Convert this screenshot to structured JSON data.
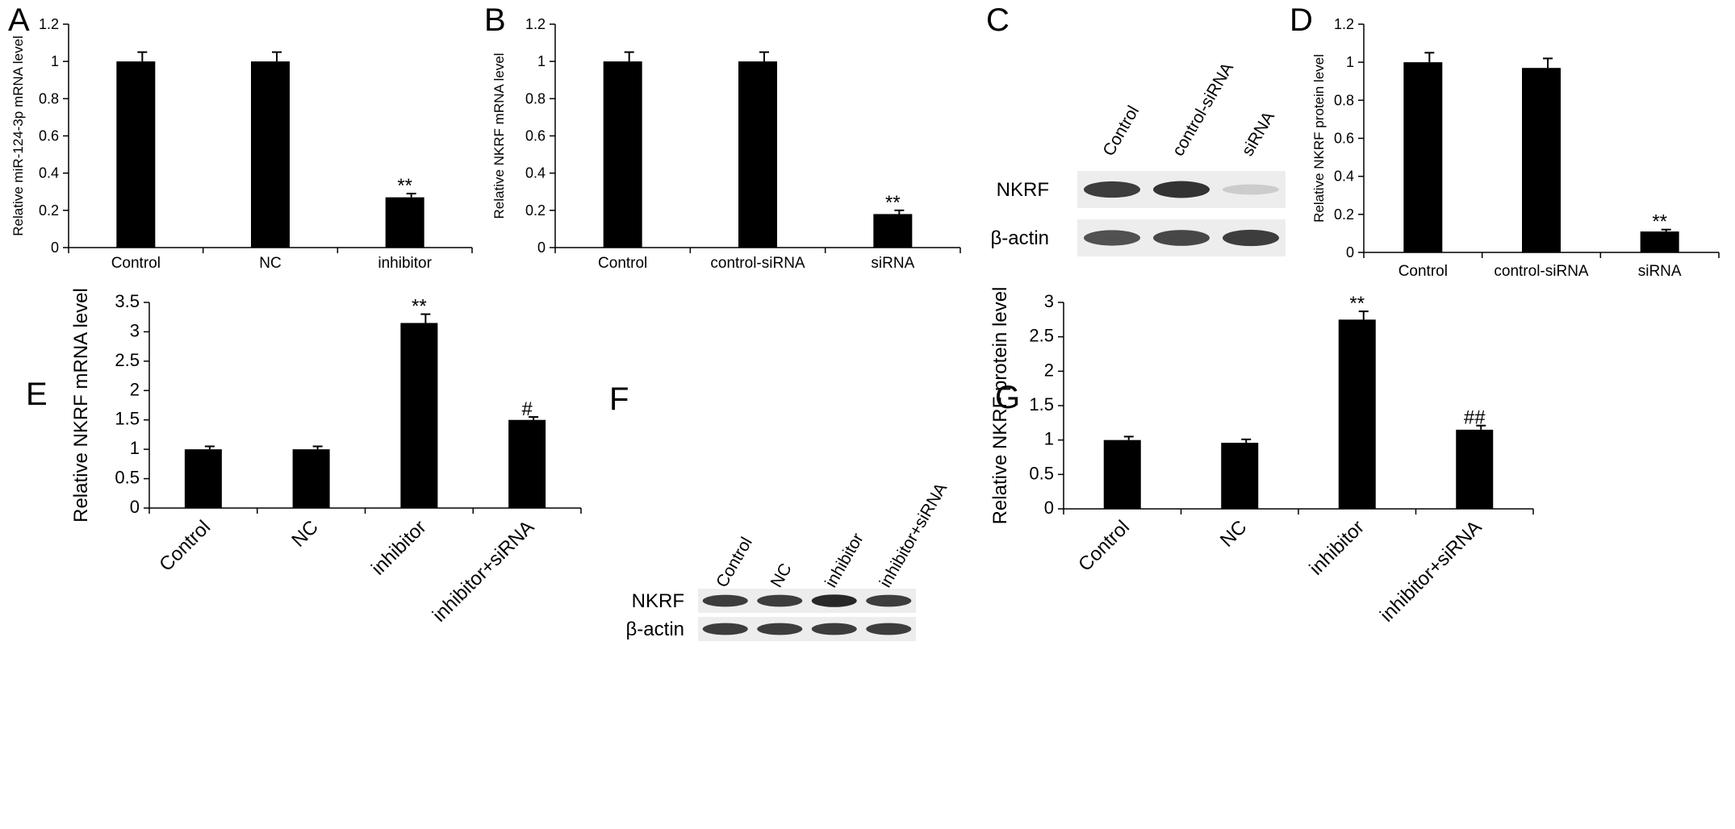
{
  "panels": {
    "A": {
      "letter": "A"
    },
    "B": {
      "letter": "B"
    },
    "C": {
      "letter": "C"
    },
    "D": {
      "letter": "D"
    },
    "E": {
      "letter": "E"
    },
    "F": {
      "letter": "F"
    },
    "G": {
      "letter": "G"
    }
  },
  "chart_data": [
    {
      "panel": "A",
      "type": "bar",
      "categories": [
        "Control",
        "NC",
        "inhibitor"
      ],
      "values": [
        1.0,
        1.0,
        0.27
      ],
      "errors": [
        0.05,
        0.05,
        0.02
      ],
      "annotations": [
        "",
        "",
        "**"
      ],
      "ylabel": "Relative miR-124-3p mRNA level",
      "xlabel": "",
      "ylim": [
        0,
        1.2
      ],
      "yticks": [
        "0",
        "0.2",
        "0.4",
        "0.6",
        "0.8",
        "1",
        "1.2"
      ],
      "bar_color": "#000000"
    },
    {
      "panel": "B",
      "type": "bar",
      "categories": [
        "Control",
        "control-siRNA",
        "siRNA"
      ],
      "values": [
        1.0,
        1.0,
        0.18
      ],
      "errors": [
        0.05,
        0.05,
        0.02
      ],
      "annotations": [
        "",
        "",
        "**"
      ],
      "ylabel": "Relative NKRF mRNA level",
      "xlabel": "",
      "ylim": [
        0,
        1.2
      ],
      "yticks": [
        "0",
        "0.2",
        "0.4",
        "0.6",
        "0.8",
        "1",
        "1.2"
      ],
      "bar_color": "#000000"
    },
    {
      "panel": "D",
      "type": "bar",
      "categories": [
        "Control",
        "control-siRNA",
        "siRNA"
      ],
      "values": [
        1.0,
        0.97,
        0.11
      ],
      "errors": [
        0.05,
        0.05,
        0.01
      ],
      "annotations": [
        "",
        "",
        "**"
      ],
      "ylabel": "Relative NKRF protein level",
      "xlabel": "",
      "ylim": [
        0,
        1.2
      ],
      "yticks": [
        "0",
        "0.2",
        "0.4",
        "0.6",
        "0.8",
        "1",
        "1.2"
      ],
      "bar_color": "#000000"
    },
    {
      "panel": "E",
      "type": "bar",
      "categories": [
        "Control",
        "NC",
        "inhibitor",
        "inhibitor+siRNA"
      ],
      "values": [
        1.0,
        1.0,
        3.15,
        1.5
      ],
      "errors": [
        0.05,
        0.05,
        0.15,
        0.05
      ],
      "annotations": [
        "",
        "",
        "**",
        "#"
      ],
      "ylabel": "Relative NKRF mRNA level",
      "xlabel": "",
      "ylim": [
        0,
        3.5
      ],
      "yticks": [
        "0",
        "0.5",
        "1",
        "1.5",
        "2",
        "2.5",
        "3",
        "3.5"
      ],
      "bar_color": "#000000"
    },
    {
      "panel": "G",
      "type": "bar",
      "categories": [
        "Control",
        "NC",
        "inhibitor",
        "inhibitor+siRNA"
      ],
      "values": [
        1.0,
        0.96,
        2.75,
        1.15
      ],
      "errors": [
        0.05,
        0.05,
        0.12,
        0.06
      ],
      "annotations": [
        "",
        "",
        "**",
        "##"
      ],
      "ylabel": "Relative NKRF protein level",
      "xlabel": "",
      "ylim": [
        0,
        3
      ],
      "yticks": [
        "0",
        "0.5",
        "1",
        "1.5",
        "2",
        "2.5",
        "3"
      ],
      "bar_color": "#000000"
    }
  ],
  "blots": [
    {
      "panel": "C",
      "lanes": [
        "Control",
        "control-siRNA",
        "siRNA"
      ],
      "rows": [
        {
          "label": "NKRF",
          "intensity": [
            0.85,
            0.9,
            0.15
          ]
        },
        {
          "label": "β-actin",
          "intensity": [
            0.75,
            0.8,
            0.85
          ]
        }
      ]
    },
    {
      "panel": "F",
      "lanes": [
        "Control",
        "NC",
        "inhibitor",
        "inhibitor+siRNA"
      ],
      "rows": [
        {
          "label": "NKRF",
          "intensity": [
            0.85,
            0.85,
            0.95,
            0.85
          ]
        },
        {
          "label": "β-actin",
          "intensity": [
            0.85,
            0.85,
            0.85,
            0.85
          ]
        }
      ]
    }
  ]
}
